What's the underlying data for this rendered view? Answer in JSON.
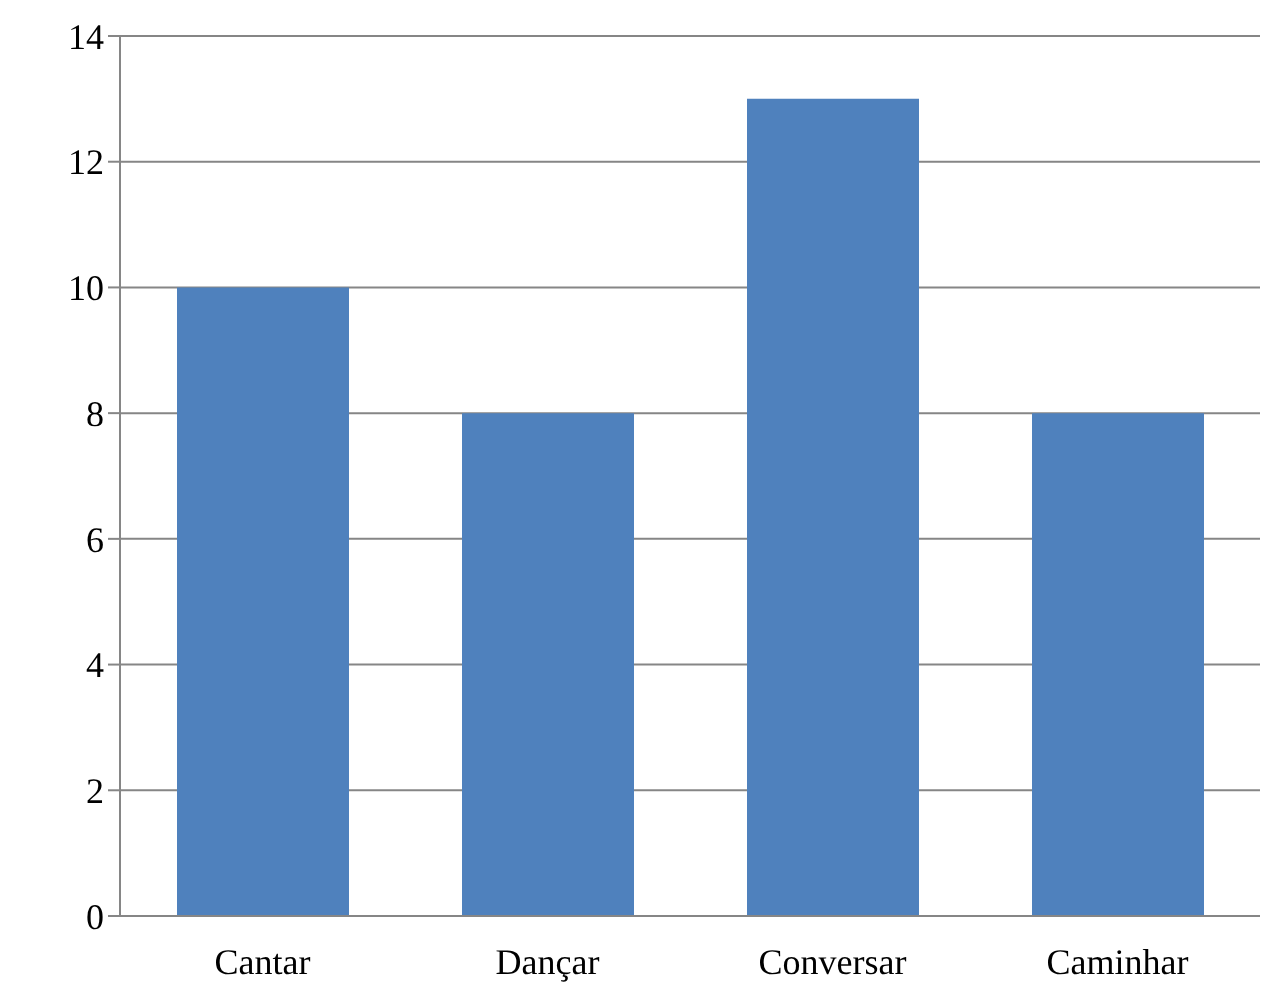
{
  "chart_data": {
    "type": "bar",
    "categories": [
      "Cantar",
      "Dançar",
      "Conversar",
      "Caminhar"
    ],
    "values": [
      10,
      8,
      13,
      8
    ],
    "color": "#4f81bd",
    "ylim": [
      0,
      14
    ],
    "yticks": [
      0,
      2,
      4,
      6,
      8,
      10,
      12,
      14
    ],
    "grid": "y"
  }
}
